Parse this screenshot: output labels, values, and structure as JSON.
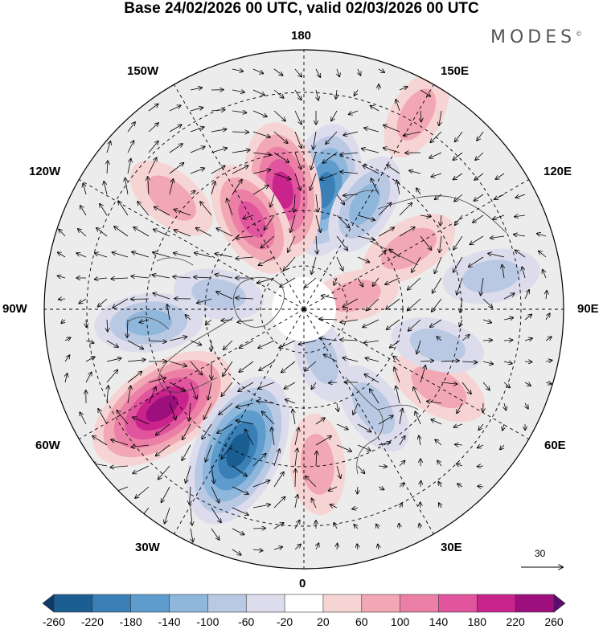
{
  "title": "Base 24/02/2026 00 UTC, valid 02/03/2026 00 UTC",
  "brand": "MODES",
  "brand_mark": "©",
  "longitude_labels": {
    "lon_180": "180",
    "lon_150e": "150E",
    "lon_120e": "120E",
    "lon_90e": "90E",
    "lon_60e": "60E",
    "lon_30e": "30E",
    "lon_0": "0",
    "lon_30w": "30W",
    "lon_60w": "60W",
    "lon_90w": "90W",
    "lon_120w": "120W",
    "lon_150w": "150W"
  },
  "reference_vector": {
    "value": "30"
  },
  "colorbar": {
    "ticks": [
      "-260",
      "-220",
      "-180",
      "-140",
      "-100",
      "-60",
      "-20",
      "20",
      "60",
      "100",
      "140",
      "180",
      "220",
      "260"
    ],
    "colors": [
      "#0d3b66",
      "#1b5e92",
      "#3a7fb5",
      "#5d9ccc",
      "#8fb6db",
      "#b9c8e3",
      "#dcdcec",
      "#ffffff",
      "#f7d4d4",
      "#f2a7b5",
      "#ec7fa6",
      "#e0559d",
      "#c9238c",
      "#9c0f7d",
      "#5c0b6e"
    ]
  },
  "anomaly_centers": [
    {
      "lon": 170,
      "lat": 55,
      "value": -160
    },
    {
      "lon": -170,
      "lat": 55,
      "value": 170
    },
    {
      "lon": 150,
      "lat": 55,
      "value": -80
    },
    {
      "lon": -150,
      "lat": 60,
      "value": 120
    },
    {
      "lon": -130,
      "lat": 40,
      "value": 60
    },
    {
      "lon": 120,
      "lat": 55,
      "value": 70
    },
    {
      "lon": 100,
      "lat": 35,
      "value": -60
    },
    {
      "lon": -85,
      "lat": 45,
      "value": -90
    },
    {
      "lon": -55,
      "lat": 40,
      "value": 230
    },
    {
      "lon": -25,
      "lat": 45,
      "value": -230
    },
    {
      "lon": 5,
      "lat": 45,
      "value": 70
    },
    {
      "lon": 35,
      "lat": 55,
      "value": -60
    },
    {
      "lon": 60,
      "lat": 45,
      "value": 70
    },
    {
      "lon": 75,
      "lat": 50,
      "value": -50
    },
    {
      "lon": 105,
      "lat": 75,
      "value": 40
    },
    {
      "lon": 150,
      "lat": 25,
      "value": 50
    },
    {
      "lon": -100,
      "lat": 65,
      "value": -40
    },
    {
      "lon": 20,
      "lat": 75,
      "value": -40
    }
  ]
}
